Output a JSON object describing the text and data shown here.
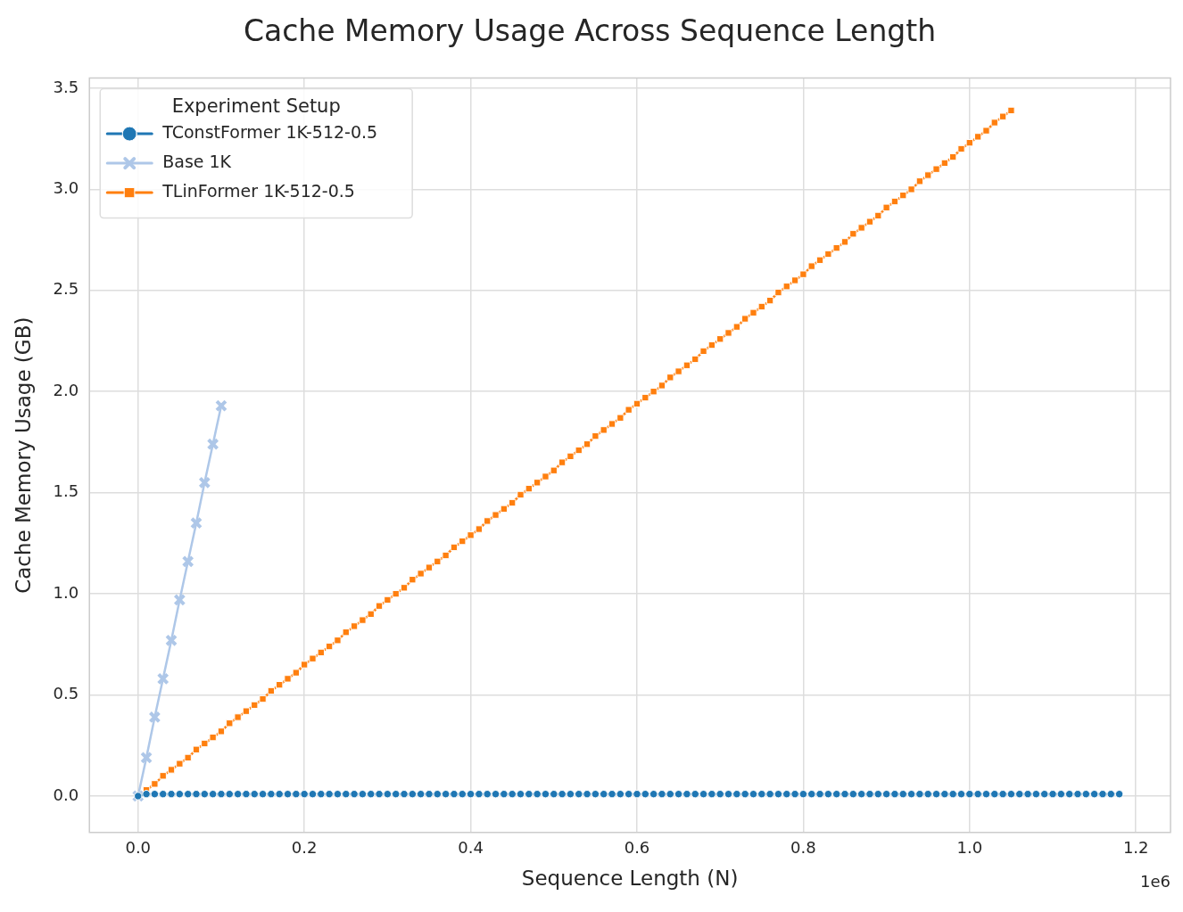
{
  "chart_data": {
    "type": "line",
    "title": "Cache Memory Usage Across Sequence Length",
    "xlabel": "Sequence Length (N)",
    "ylabel": "Cache Memory Usage (GB)",
    "legend_title": "Experiment Setup",
    "legend": "top left",
    "grid": true,
    "annotations": [
      "1e6"
    ],
    "xlim": [
      -0.0585,
      1.2416
    ],
    "ylim": [
      -0.18,
      3.55
    ],
    "xticks": [
      {
        "value": 0,
        "label": "0.0"
      },
      0.2,
      0.4,
      0.6,
      0.8,
      {
        "value": 1,
        "label": "1.0"
      },
      1.2
    ],
    "yticks": [
      {
        "value": 0,
        "label": "0.0"
      },
      0.5,
      {
        "value": 1,
        "label": "1.0"
      },
      1.5,
      {
        "value": 2,
        "label": "2.0"
      },
      2.5,
      {
        "value": 3,
        "label": "3.0"
      },
      3.5
    ],
    "x": [
      0,
      0.01,
      0.02,
      0.03,
      0.04,
      0.05,
      0.06,
      0.07,
      0.08,
      0.09,
      0.1,
      0.11,
      0.12,
      0.13,
      0.14,
      0.15,
      0.16,
      0.17,
      0.18,
      0.19,
      0.2,
      0.21,
      0.22,
      0.23,
      0.24,
      0.25,
      0.26,
      0.27,
      0.28,
      0.29,
      0.3,
      0.31,
      0.32,
      0.33,
      0.34,
      0.35,
      0.36,
      0.37,
      0.38,
      0.39,
      0.4,
      0.41,
      0.42,
      0.43,
      0.44,
      0.45,
      0.46,
      0.47,
      0.48,
      0.49,
      0.5,
      0.51,
      0.52,
      0.53,
      0.54,
      0.55,
      0.56,
      0.57,
      0.58,
      0.59,
      0.6,
      0.61,
      0.62,
      0.63,
      0.64,
      0.65,
      0.66,
      0.67,
      0.68,
      0.69,
      0.7,
      0.71,
      0.72,
      0.73,
      0.74,
      0.75,
      0.76,
      0.77,
      0.78,
      0.79,
      0.8,
      0.81,
      0.82,
      0.83,
      0.84,
      0.85,
      0.86,
      0.87,
      0.88,
      0.89,
      0.9,
      0.91,
      0.92,
      0.93,
      0.94,
      0.95,
      0.96,
      0.97,
      0.98,
      0.99,
      1.0,
      1.01,
      1.02,
      1.03,
      1.04,
      1.05,
      1.06,
      1.07,
      1.08,
      1.09,
      1.1,
      1.11,
      1.12,
      1.13,
      1.14,
      1.15,
      1.16,
      1.17,
      1.18
    ],
    "series": [
      {
        "name": "TConstFormer 1K-512-0.5",
        "color": "#1f77b4",
        "marker": "circle",
        "values": [
          0,
          0.01,
          0.01,
          0.01,
          0.01,
          0.01,
          0.01,
          0.01,
          0.01,
          0.01,
          0.01,
          0.01,
          0.01,
          0.01,
          0.01,
          0.01,
          0.01,
          0.01,
          0.01,
          0.01,
          0.01,
          0.01,
          0.01,
          0.01,
          0.01,
          0.01,
          0.01,
          0.01,
          0.01,
          0.01,
          0.01,
          0.01,
          0.01,
          0.01,
          0.01,
          0.01,
          0.01,
          0.01,
          0.01,
          0.01,
          0.01,
          0.01,
          0.01,
          0.01,
          0.01,
          0.01,
          0.01,
          0.01,
          0.01,
          0.01,
          0.01,
          0.01,
          0.01,
          0.01,
          0.01,
          0.01,
          0.01,
          0.01,
          0.01,
          0.01,
          0.01,
          0.01,
          0.01,
          0.01,
          0.01,
          0.01,
          0.01,
          0.01,
          0.01,
          0.01,
          0.01,
          0.01,
          0.01,
          0.01,
          0.01,
          0.01,
          0.01,
          0.01,
          0.01,
          0.01,
          0.01,
          0.01,
          0.01,
          0.01,
          0.01,
          0.01,
          0.01,
          0.01,
          0.01,
          0.01,
          0.01,
          0.01,
          0.01,
          0.01,
          0.01,
          0.01,
          0.01,
          0.01,
          0.01,
          0.01,
          0.01,
          0.01,
          0.01,
          0.01,
          0.01,
          0.01,
          0.01,
          0.01,
          0.01,
          0.01,
          0.01,
          0.01,
          0.01,
          0.01,
          0.01,
          0.01,
          0.01,
          0.01,
          0.01
        ]
      },
      {
        "name": "Base 1K",
        "color": "#aec7e8",
        "marker": "cross",
        "x": [
          0,
          0.01,
          0.02,
          0.03,
          0.04,
          0.05,
          0.06,
          0.07,
          0.08,
          0.09,
          0.1
        ],
        "values": [
          0,
          0.19,
          0.39,
          0.58,
          0.77,
          0.97,
          1.16,
          1.35,
          1.55,
          1.74,
          1.93
        ]
      },
      {
        "name": "TLinFormer 1K-512-0.5",
        "color": "#ff7f0e",
        "marker": "square",
        "x": [
          0,
          0.01,
          0.02,
          0.03,
          0.04,
          0.05,
          0.06,
          0.07,
          0.08,
          0.09,
          0.1,
          0.11,
          0.12,
          0.13,
          0.14,
          0.15,
          0.16,
          0.17,
          0.18,
          0.19,
          0.2,
          0.21,
          0.22,
          0.23,
          0.24,
          0.25,
          0.26,
          0.27,
          0.28,
          0.29,
          0.3,
          0.31,
          0.32,
          0.33,
          0.34,
          0.35,
          0.36,
          0.37,
          0.38,
          0.39,
          0.4,
          0.41,
          0.42,
          0.43,
          0.44,
          0.45,
          0.46,
          0.47,
          0.48,
          0.49,
          0.5,
          0.51,
          0.52,
          0.53,
          0.54,
          0.55,
          0.56,
          0.57,
          0.58,
          0.59,
          0.6,
          0.61,
          0.62,
          0.63,
          0.64,
          0.65,
          0.66,
          0.67,
          0.68,
          0.69,
          0.7,
          0.71,
          0.72,
          0.73,
          0.74,
          0.75,
          0.76,
          0.77,
          0.78,
          0.79,
          0.8,
          0.81,
          0.82,
          0.83,
          0.84,
          0.85,
          0.86,
          0.87,
          0.88,
          0.89,
          0.9,
          0.91,
          0.92,
          0.93,
          0.94,
          0.95,
          0.96,
          0.97,
          0.98,
          0.99,
          1.0,
          1.01,
          1.02,
          1.03,
          1.04,
          1.05
        ],
        "values": [
          0,
          0.03,
          0.06,
          0.1,
          0.13,
          0.16,
          0.19,
          0.23,
          0.26,
          0.29,
          0.32,
          0.36,
          0.39,
          0.42,
          0.45,
          0.48,
          0.52,
          0.55,
          0.58,
          0.61,
          0.65,
          0.68,
          0.71,
          0.74,
          0.77,
          0.81,
          0.84,
          0.87,
          0.9,
          0.94,
          0.97,
          1.0,
          1.03,
          1.07,
          1.1,
          1.13,
          1.16,
          1.19,
          1.23,
          1.26,
          1.29,
          1.32,
          1.36,
          1.39,
          1.42,
          1.45,
          1.49,
          1.52,
          1.55,
          1.58,
          1.61,
          1.65,
          1.68,
          1.71,
          1.74,
          1.78,
          1.81,
          1.84,
          1.87,
          1.91,
          1.94,
          1.97,
          2.0,
          2.03,
          2.07,
          2.1,
          2.13,
          2.16,
          2.2,
          2.23,
          2.26,
          2.29,
          2.32,
          2.36,
          2.39,
          2.42,
          2.45,
          2.49,
          2.52,
          2.55,
          2.58,
          2.62,
          2.65,
          2.68,
          2.71,
          2.74,
          2.78,
          2.81,
          2.84,
          2.87,
          2.91,
          2.94,
          2.97,
          3.0,
          3.04,
          3.07,
          3.1,
          3.13,
          3.16,
          3.2,
          3.23,
          3.26,
          3.29,
          3.33,
          3.36,
          3.39
        ]
      }
    ]
  }
}
